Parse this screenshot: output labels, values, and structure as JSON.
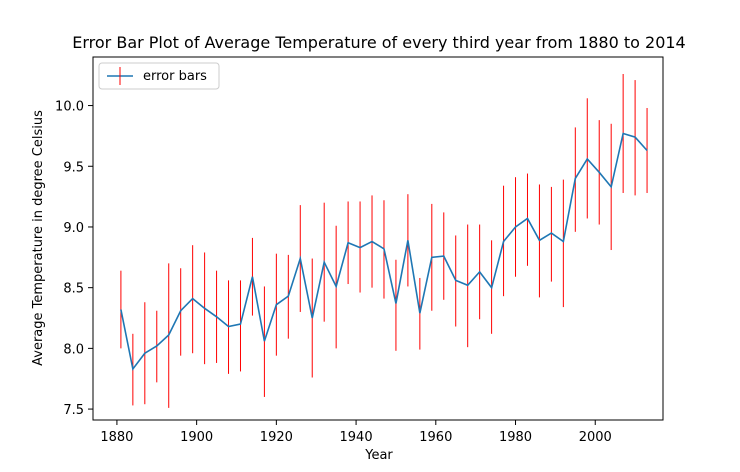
{
  "chart_data": {
    "type": "line",
    "title": "Error Bar Plot of Average Temperature of every third year from 1880 to 2014",
    "xlabel": "Year",
    "ylabel": "Average Temperature in degree Celsius",
    "xlim": [
      1874,
      2017
    ],
    "ylim": [
      7.41,
      10.4
    ],
    "xticks": [
      1880,
      1900,
      1920,
      1940,
      1960,
      1980,
      2000
    ],
    "yticks": [
      7.5,
      8.0,
      8.5,
      9.0,
      9.5,
      10.0
    ],
    "ytick_labels": [
      "7.5",
      "8.0",
      "8.5",
      "9.0",
      "9.5",
      "10.0"
    ],
    "grid": false,
    "legend": {
      "position": "upper-left",
      "entries": [
        "error bars"
      ]
    },
    "colors": {
      "line": "#1f77b4",
      "error": "#ff0000",
      "axes": "#000000"
    },
    "series": [
      {
        "x": [
          1881,
          1884,
          1887,
          1890,
          1893,
          1896,
          1899,
          1902,
          1905,
          1908,
          1911,
          1914,
          1917,
          1920,
          1923,
          1926,
          1929,
          1932,
          1935,
          1938,
          1941,
          1944,
          1947,
          1950,
          1953,
          1956,
          1959,
          1962,
          1965,
          1968,
          1971,
          1974,
          1977,
          1980,
          1983,
          1986,
          1989,
          1992,
          1995,
          1998,
          2001,
          2004,
          2007,
          2010,
          2013
        ],
        "y": [
          8.32,
          7.83,
          7.96,
          8.02,
          8.11,
          8.31,
          8.41,
          8.33,
          8.26,
          8.18,
          8.2,
          8.59,
          8.06,
          8.36,
          8.43,
          8.74,
          8.25,
          8.71,
          8.51,
          8.87,
          8.83,
          8.88,
          8.82,
          8.37,
          8.89,
          8.29,
          8.75,
          8.76,
          8.56,
          8.52,
          8.63,
          8.5,
          8.88,
          9.0,
          9.07,
          8.89,
          8.95,
          8.88,
          9.4,
          9.56,
          9.45,
          9.33,
          9.77,
          9.74,
          9.63
        ],
        "lower": [
          8.0,
          7.53,
          7.54,
          7.72,
          7.51,
          7.94,
          7.96,
          7.87,
          7.88,
          7.79,
          7.81,
          8.27,
          7.6,
          7.94,
          8.08,
          8.3,
          7.76,
          8.22,
          8.0,
          8.53,
          8.46,
          8.5,
          8.41,
          7.98,
          8.51,
          7.99,
          8.31,
          8.4,
          8.18,
          8.01,
          8.24,
          8.12,
          8.43,
          8.59,
          8.68,
          8.42,
          8.55,
          8.34,
          8.96,
          9.07,
          9.02,
          8.81,
          9.28,
          9.26,
          9.28
        ],
        "upper": [
          8.64,
          8.12,
          8.38,
          8.31,
          8.7,
          8.66,
          8.85,
          8.79,
          8.64,
          8.56,
          8.56,
          8.91,
          8.51,
          8.78,
          8.77,
          9.18,
          8.74,
          9.2,
          9.01,
          9.21,
          9.21,
          9.26,
          9.22,
          8.73,
          9.27,
          8.58,
          9.19,
          9.12,
          8.93,
          9.02,
          9.02,
          8.89,
          9.34,
          9.41,
          9.44,
          9.35,
          9.33,
          9.39,
          9.82,
          10.06,
          9.88,
          9.85,
          10.26,
          10.21,
          9.98
        ]
      }
    ]
  }
}
